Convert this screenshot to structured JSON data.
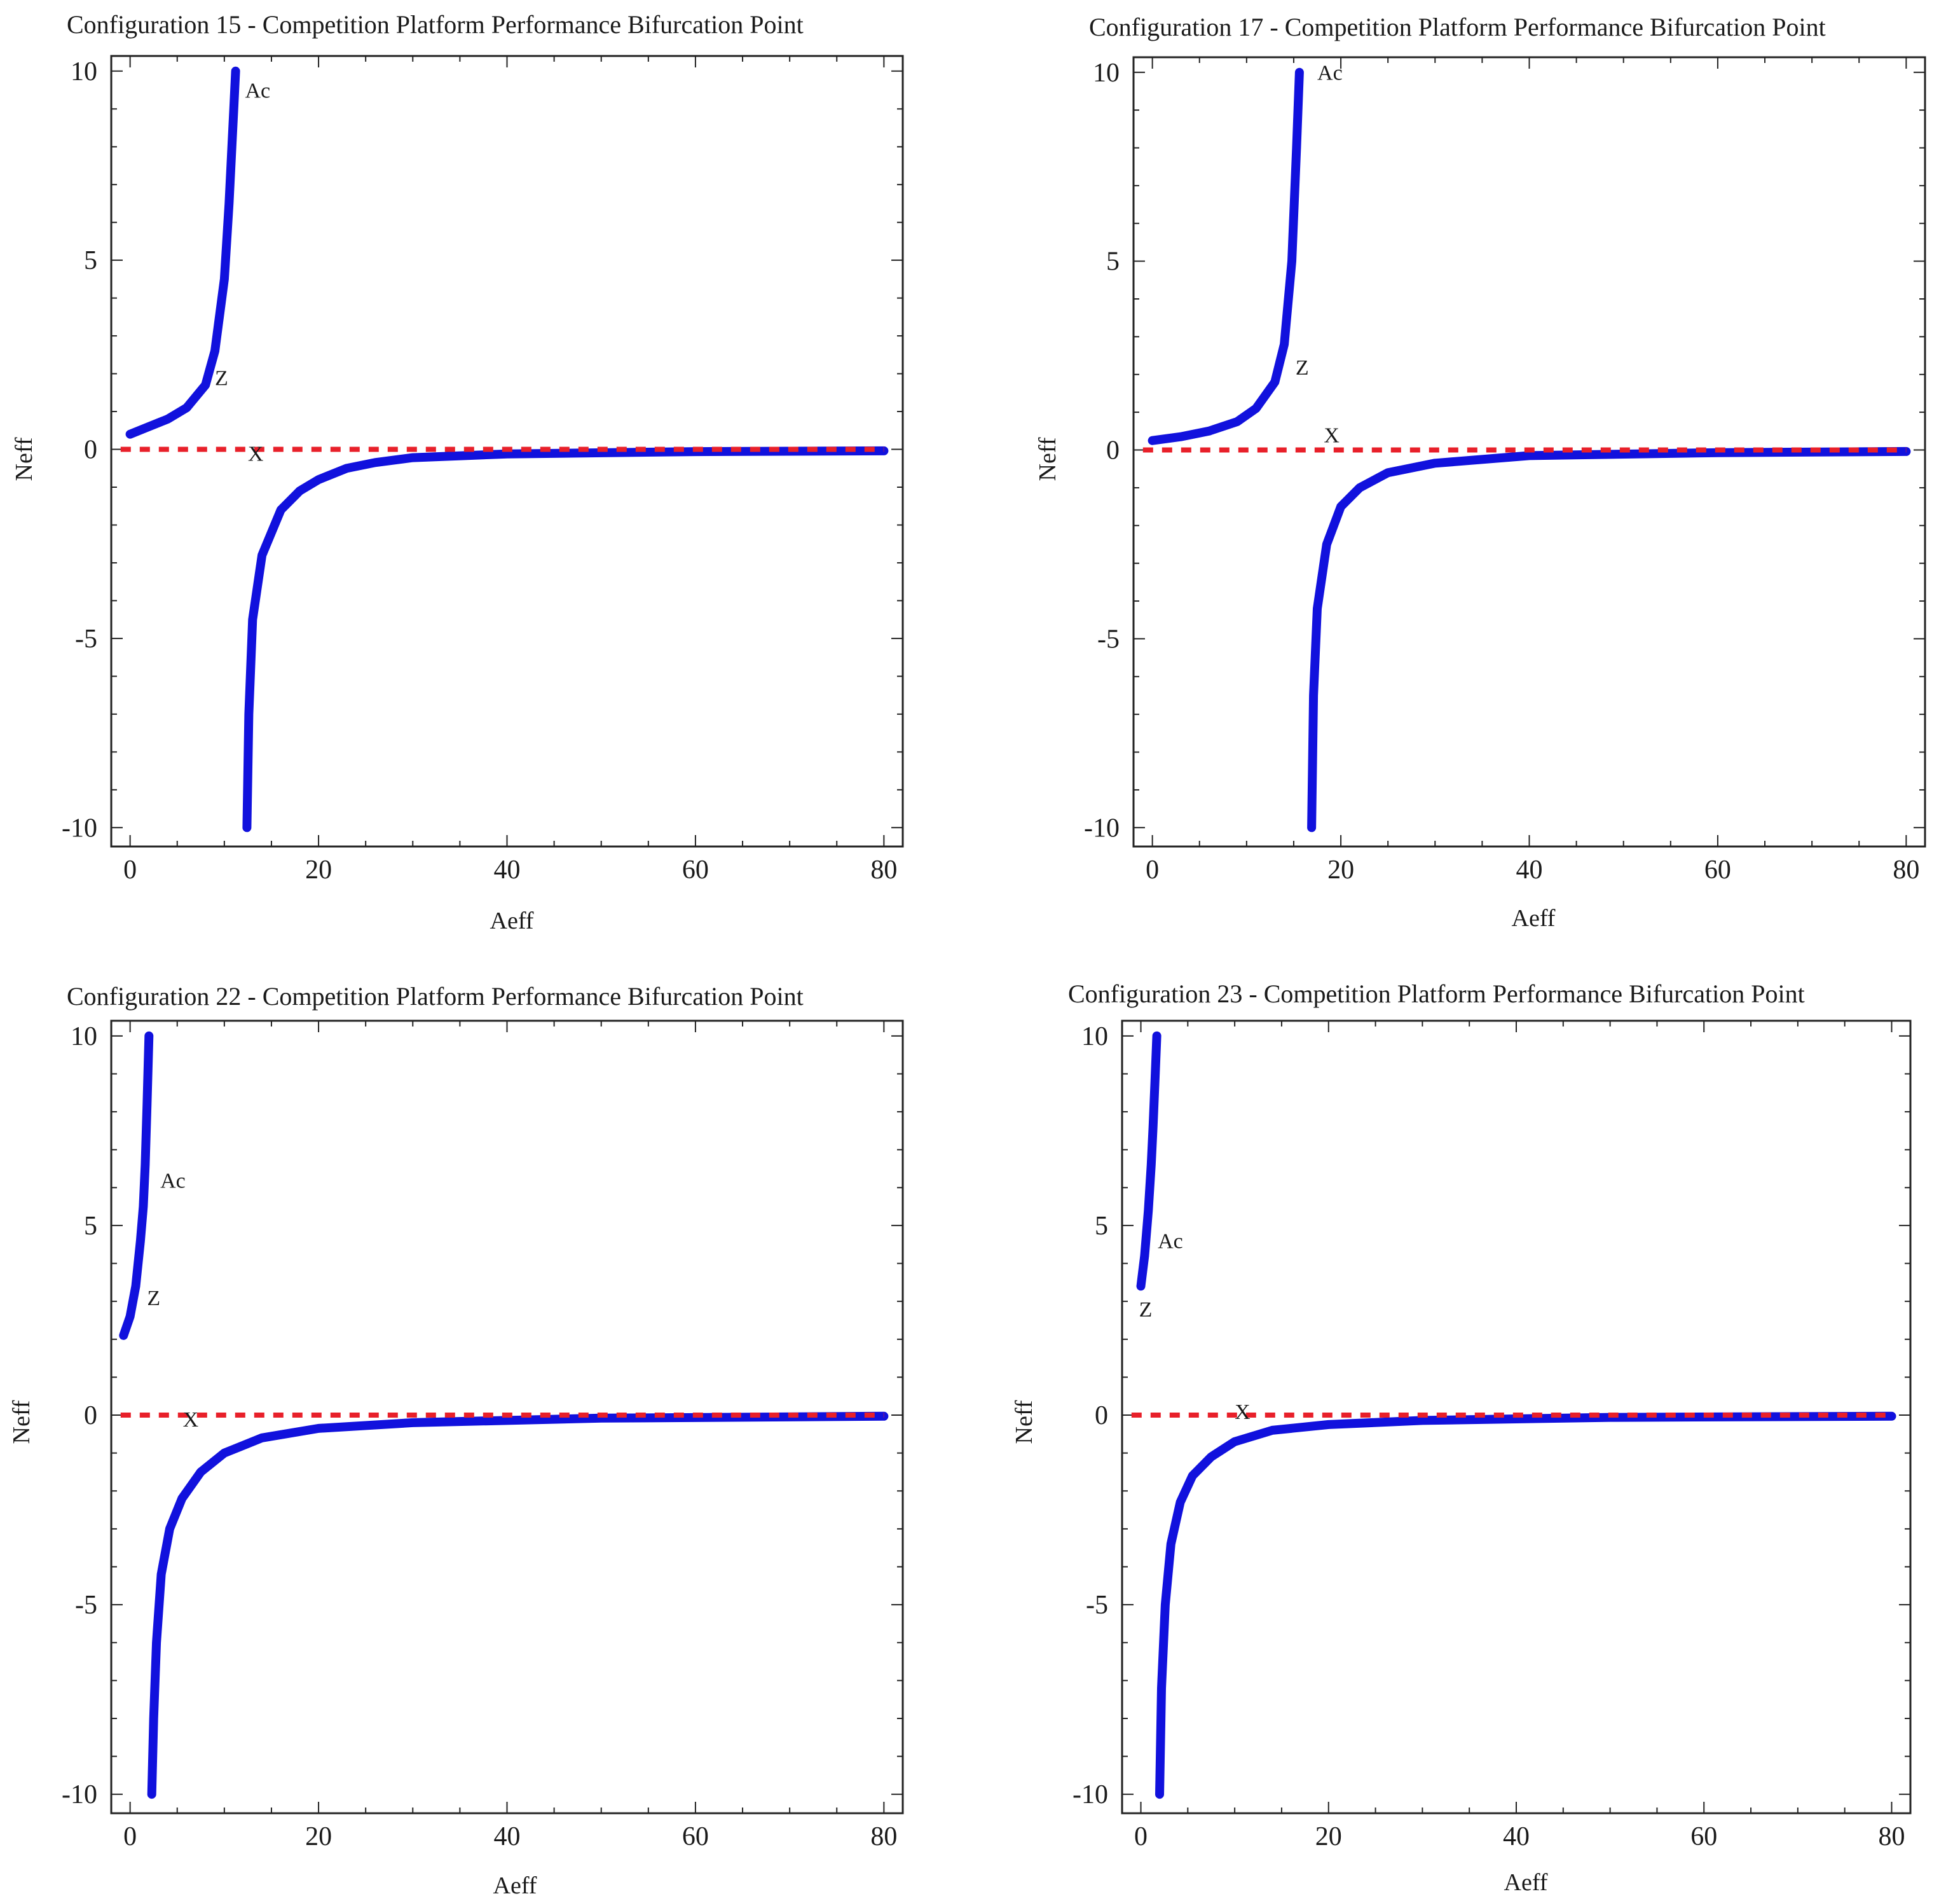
{
  "colors": {
    "branch": "#1111dd",
    "baseline": "#e8202a",
    "frame": "#222222"
  },
  "chart_data": [
    {
      "type": "line",
      "title": "Configuration 15 - Competition Platform Performance Bifurcation Point",
      "xlabel": "Aeff",
      "ylabel": "Neff",
      "xlim": [
        -2,
        82
      ],
      "ylim": [
        -10.5,
        10.4
      ],
      "xticks": [
        "0",
        "20",
        "40",
        "60",
        "80"
      ],
      "yticks": [
        "10",
        "5",
        "0",
        "-5",
        "-10"
      ],
      "grid": false,
      "series": [
        {
          "role": "upper-branch",
          "x": [
            0,
            2,
            4,
            6,
            8,
            9,
            10,
            10.5,
            11,
            11.2
          ],
          "y": [
            0.4,
            0.6,
            0.8,
            1.1,
            1.7,
            2.6,
            4.5,
            6.5,
            9.0,
            10.0
          ]
        },
        {
          "role": "lower-branch",
          "x": [
            12.4,
            12.6,
            13,
            14,
            16,
            18,
            20,
            23,
            26,
            30,
            40,
            60,
            80
          ],
          "y": [
            -10.0,
            -7.0,
            -4.5,
            -2.8,
            -1.6,
            -1.1,
            -0.8,
            -0.5,
            -0.35,
            -0.22,
            -0.12,
            -0.06,
            -0.04
          ]
        },
        {
          "role": "baseline",
          "x": [
            -1,
            80
          ],
          "y": [
            0,
            0
          ]
        }
      ],
      "annotations": [
        {
          "text": "Ac",
          "x": 12.2,
          "y": 9.3
        },
        {
          "text": "Z",
          "x": 9.0,
          "y": 1.7
        },
        {
          "text": "X",
          "x": 12.5,
          "y": -0.3
        }
      ]
    },
    {
      "type": "line",
      "title": "Configuration 17 - Competition Platform Performance Bifurcation Point",
      "xlabel": "Aeff",
      "ylabel": "Neff",
      "xlim": [
        -2,
        82
      ],
      "ylim": [
        -10.5,
        10.4
      ],
      "xticks": [
        "0",
        "20",
        "40",
        "60",
        "80"
      ],
      "yticks": [
        "10",
        "5",
        "0",
        "-5",
        "-10"
      ],
      "grid": false,
      "series": [
        {
          "role": "upper-branch",
          "x": [
            0,
            3,
            6,
            9,
            11,
            13,
            14,
            14.8,
            15.3,
            15.6
          ],
          "y": [
            0.25,
            0.35,
            0.5,
            0.75,
            1.1,
            1.8,
            2.8,
            5.0,
            8.0,
            10.0
          ]
        },
        {
          "role": "lower-branch",
          "x": [
            16.9,
            17.1,
            17.5,
            18.5,
            20,
            22,
            25,
            30,
            40,
            60,
            80
          ],
          "y": [
            -10.0,
            -6.5,
            -4.2,
            -2.5,
            -1.5,
            -1.0,
            -0.6,
            -0.35,
            -0.15,
            -0.07,
            -0.04
          ]
        },
        {
          "role": "baseline",
          "x": [
            -1,
            80
          ],
          "y": [
            0,
            0
          ]
        }
      ],
      "annotations": [
        {
          "text": "Ac",
          "x": 17.5,
          "y": 9.8
        },
        {
          "text": "Z",
          "x": 15.2,
          "y": 2.0
        },
        {
          "text": "X",
          "x": 18.2,
          "y": 0.2
        }
      ]
    },
    {
      "type": "line",
      "title": "Configuration 22 - Competition Platform Performance Bifurcation Point",
      "xlabel": "Aeff",
      "ylabel": "Neff",
      "xlim": [
        -2,
        82
      ],
      "ylim": [
        -10.5,
        10.4
      ],
      "xticks": [
        "0",
        "20",
        "40",
        "60",
        "80"
      ],
      "yticks": [
        "10",
        "5",
        "0",
        "-5",
        "-10"
      ],
      "grid": false,
      "series": [
        {
          "role": "upper-branch",
          "x": [
            -0.7,
            0,
            0.6,
            1.1,
            1.4,
            1.6,
            1.8,
            2.0
          ],
          "y": [
            2.1,
            2.6,
            3.4,
            4.6,
            5.5,
            6.6,
            8.2,
            10.0
          ]
        },
        {
          "role": "lower-branch",
          "x": [
            2.3,
            2.5,
            2.8,
            3.3,
            4.2,
            5.5,
            7.5,
            10,
            14,
            20,
            30,
            50,
            80
          ],
          "y": [
            -10.0,
            -8.0,
            -6.0,
            -4.2,
            -3.0,
            -2.2,
            -1.5,
            -1.0,
            -0.6,
            -0.35,
            -0.2,
            -0.08,
            -0.03
          ]
        },
        {
          "role": "baseline",
          "x": [
            -1,
            80
          ],
          "y": [
            0,
            0
          ]
        }
      ],
      "annotations": [
        {
          "text": "Ac",
          "x": 3.2,
          "y": 6.0
        },
        {
          "text": "Z",
          "x": 1.8,
          "y": 2.9
        },
        {
          "text": "X",
          "x": 5.6,
          "y": -0.3
        }
      ]
    },
    {
      "type": "line",
      "title": "Configuration 23 - Competition Platform Performance Bifurcation Point",
      "xlabel": "Aeff",
      "ylabel": "Neff",
      "xlim": [
        -2,
        82
      ],
      "ylim": [
        -10.5,
        10.4
      ],
      "xticks": [
        "0",
        "20",
        "40",
        "60",
        "80"
      ],
      "yticks": [
        "10",
        "5",
        "0",
        "-5",
        "-10"
      ],
      "grid": false,
      "series": [
        {
          "role": "upper-branch",
          "x": [
            0,
            0.4,
            0.8,
            1.1,
            1.3,
            1.5,
            1.7
          ],
          "y": [
            3.4,
            4.2,
            5.4,
            6.6,
            7.6,
            8.8,
            10.0
          ]
        },
        {
          "role": "lower-branch",
          "x": [
            2.0,
            2.2,
            2.6,
            3.2,
            4.2,
            5.5,
            7.5,
            10,
            14,
            20,
            30,
            50,
            80
          ],
          "y": [
            -10.0,
            -7.2,
            -5.0,
            -3.4,
            -2.3,
            -1.6,
            -1.1,
            -0.7,
            -0.4,
            -0.25,
            -0.14,
            -0.06,
            -0.03
          ]
        },
        {
          "role": "baseline",
          "x": [
            -1,
            80
          ],
          "y": [
            0,
            0
          ]
        }
      ],
      "annotations": [
        {
          "text": "Ac",
          "x": 1.8,
          "y": 4.4
        },
        {
          "text": "Z",
          "x": -0.2,
          "y": 2.6
        },
        {
          "text": "X",
          "x": 10.0,
          "y": -0.1
        }
      ]
    }
  ]
}
